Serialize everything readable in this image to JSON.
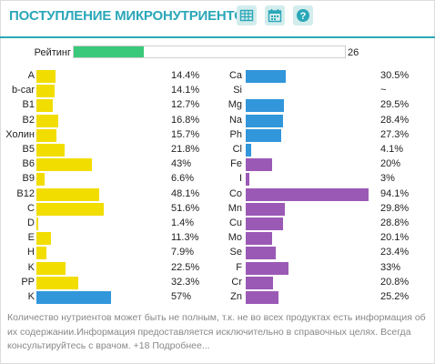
{
  "header": {
    "title": "ПОСТУПЛЕНИЕ МИКРОНУТРИЕНТОВ",
    "buttons": [
      {
        "icon": "table-icon"
      },
      {
        "icon": "calendar-icon"
      },
      {
        "icon": "help-icon"
      }
    ]
  },
  "rating": {
    "label": "Рейтинг",
    "value": "26",
    "fraction": 0.26
  },
  "left_list": [
    {
      "name": "A",
      "value": "14.4%",
      "pct": 14.4,
      "color": "#f2dd00"
    },
    {
      "name": "b-car",
      "value": "14.1%",
      "pct": 14.1,
      "color": "#f2dd00"
    },
    {
      "name": "B1",
      "value": "12.7%",
      "pct": 12.7,
      "color": "#f2dd00"
    },
    {
      "name": "B2",
      "value": "16.8%",
      "pct": 16.8,
      "color": "#f2dd00"
    },
    {
      "name": "Холин",
      "value": "15.7%",
      "pct": 15.7,
      "color": "#f2dd00"
    },
    {
      "name": "B5",
      "value": "21.8%",
      "pct": 21.8,
      "color": "#f2dd00"
    },
    {
      "name": "B6",
      "value": "43%",
      "pct": 43,
      "color": "#f2dd00"
    },
    {
      "name": "B9",
      "value": "6.6%",
      "pct": 6.6,
      "color": "#f2dd00"
    },
    {
      "name": "B12",
      "value": "48.1%",
      "pct": 48.1,
      "color": "#f2dd00"
    },
    {
      "name": "C",
      "value": "51.6%",
      "pct": 51.6,
      "color": "#f2dd00"
    },
    {
      "name": "D",
      "value": "1.4%",
      "pct": 1.4,
      "color": "#f2dd00"
    },
    {
      "name": "E",
      "value": "11.3%",
      "pct": 11.3,
      "color": "#f2dd00"
    },
    {
      "name": "H",
      "value": "7.9%",
      "pct": 7.9,
      "color": "#f2dd00"
    },
    {
      "name": "K",
      "value": "22.5%",
      "pct": 22.5,
      "color": "#f2dd00"
    },
    {
      "name": "PP",
      "value": "32.3%",
      "pct": 32.3,
      "color": "#f2dd00"
    },
    {
      "name": "K",
      "value": "57%",
      "pct": 57,
      "color": "#3296db"
    }
  ],
  "right_list": [
    {
      "name": "Ca",
      "value": "30.5%",
      "pct": 30.5,
      "color": "#3296db"
    },
    {
      "name": "Si",
      "value": "~",
      "pct": 0,
      "color": "#3296db"
    },
    {
      "name": "Mg",
      "value": "29.5%",
      "pct": 29.5,
      "color": "#3296db"
    },
    {
      "name": "Na",
      "value": "28.4%",
      "pct": 28.4,
      "color": "#3296db"
    },
    {
      "name": "Ph",
      "value": "27.3%",
      "pct": 27.3,
      "color": "#3296db"
    },
    {
      "name": "Cl",
      "value": "4.1%",
      "pct": 4.1,
      "color": "#3296db"
    },
    {
      "name": "Fe",
      "value": "20%",
      "pct": 20,
      "color": "#9b59b6"
    },
    {
      "name": "I",
      "value": "3%",
      "pct": 3,
      "color": "#9b59b6"
    },
    {
      "name": "Co",
      "value": "94.1%",
      "pct": 94.1,
      "color": "#9b59b6"
    },
    {
      "name": "Mn",
      "value": "29.8%",
      "pct": 29.8,
      "color": "#9b59b6"
    },
    {
      "name": "Cu",
      "value": "28.8%",
      "pct": 28.8,
      "color": "#9b59b6"
    },
    {
      "name": "Mo",
      "value": "20.1%",
      "pct": 20.1,
      "color": "#9b59b6"
    },
    {
      "name": "Se",
      "value": "23.4%",
      "pct": 23.4,
      "color": "#9b59b6"
    },
    {
      "name": "F",
      "value": "33%",
      "pct": 33,
      "color": "#9b59b6"
    },
    {
      "name": "Cr",
      "value": "20.8%",
      "pct": 20.8,
      "color": "#9b59b6"
    },
    {
      "name": "Zn",
      "value": "25.2%",
      "pct": 25.2,
      "color": "#9b59b6"
    }
  ],
  "footer": {
    "text": "Количество нутриентов может быть не полным, т.к. не во всех продуктах есть информация об их содержании.Информация предоставляется исключительно в справочных целях. Всегда консультируйтесь с врачом. +18",
    "more_link": "Подробнее..."
  }
}
